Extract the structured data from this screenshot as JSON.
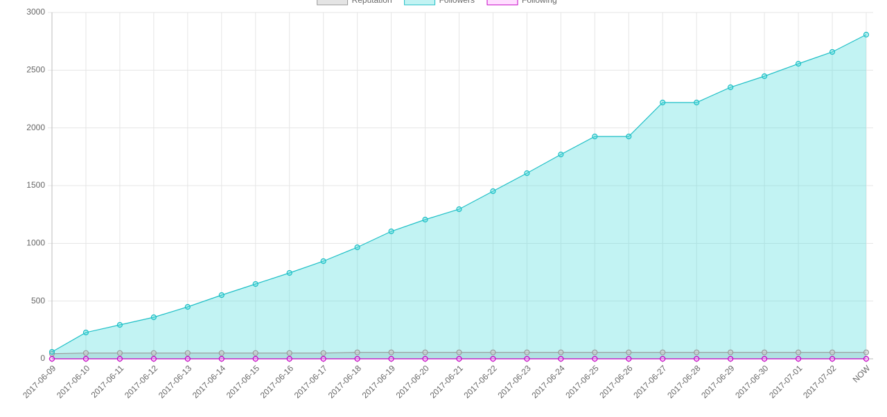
{
  "chart_data": {
    "type": "area",
    "categories": [
      "2017-06-09",
      "2017-06-10",
      "2017-06-11",
      "2017-06-12",
      "2017-06-13",
      "2017-06-14",
      "2017-06-15",
      "2017-06-16",
      "2017-06-17",
      "2017-06-18",
      "2017-06-19",
      "2017-06-20",
      "2017-06-21",
      "2017-06-22",
      "2017-06-23",
      "2017-06-24",
      "2017-06-25",
      "2017-06-26",
      "2017-06-27",
      "2017-06-28",
      "2017-06-29",
      "2017-06-30",
      "2017-07-01",
      "2017-07-02",
      "NOW"
    ],
    "series": [
      {
        "name": "Reputation",
        "color": "#999999",
        "fill": "rgba(210,210,210,0.6)",
        "values": [
          44,
          50,
          50,
          50,
          50,
          50,
          50,
          50,
          50,
          56,
          56,
          56,
          56,
          56,
          56,
          56,
          56,
          56,
          56,
          56,
          56,
          56,
          56,
          56,
          56
        ]
      },
      {
        "name": "Followers",
        "color": "#1ebfc6",
        "fill": "rgba(80,220,220,0.35)",
        "values": [
          60,
          228,
          294,
          360,
          450,
          552,
          648,
          744,
          846,
          966,
          1104,
          1206,
          1296,
          1452,
          1608,
          1770,
          1926,
          1926,
          2220,
          2220,
          2352,
          2448,
          2556,
          2658,
          2808
        ]
      },
      {
        "name": "Following",
        "color": "#c400c4",
        "fill": "rgba(255,190,255,0.5)",
        "values": [
          0,
          0,
          0,
          0,
          0,
          0,
          0,
          0,
          0,
          0,
          0,
          0,
          0,
          0,
          0,
          0,
          0,
          0,
          0,
          0,
          0,
          0,
          0,
          0,
          0
        ]
      }
    ],
    "ylim": [
      0,
      3000
    ],
    "yticks": [
      0,
      500,
      1000,
      1500,
      2000,
      2500,
      3000
    ],
    "grid": true,
    "legend": "top"
  }
}
